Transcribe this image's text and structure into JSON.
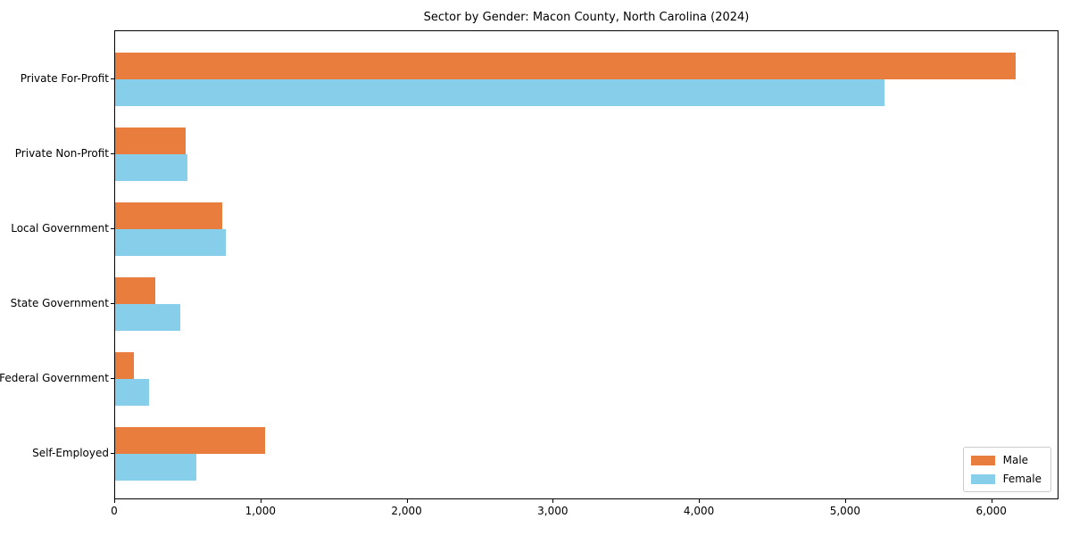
{
  "chart_data": {
    "type": "bar",
    "orientation": "horizontal",
    "title": "Sector by Gender: Macon County, North Carolina (2024)",
    "categories": [
      "Private For-Profit",
      "Private Non-Profit",
      "Local Government",
      "State Government",
      "Federal Government",
      "Self-Employed"
    ],
    "series": [
      {
        "name": "Male",
        "color": "#e87d3e",
        "values": [
          6160,
          480,
          735,
          275,
          125,
          1025
        ]
      },
      {
        "name": "Female",
        "color": "#87ceeb",
        "values": [
          5260,
          495,
          755,
          445,
          230,
          555
        ]
      }
    ],
    "xlim": [
      0,
      6460
    ],
    "xticks": {
      "values": [
        0,
        1000,
        2000,
        3000,
        4000,
        5000,
        6000
      ],
      "labels": [
        "0",
        "1,000",
        "2,000",
        "3,000",
        "4,000",
        "5,000",
        "6,000"
      ]
    },
    "xlabel": "",
    "ylabel": "",
    "grid": false,
    "legend_position": "lower right",
    "frame_color": "#000000",
    "background_color": "#ffffff"
  }
}
